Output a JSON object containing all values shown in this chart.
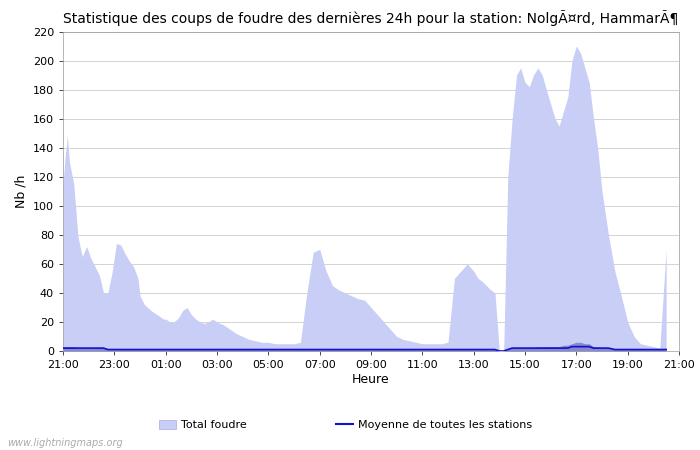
{
  "title": "Statistique des coups de foudre des dernières 24h pour la station: NolgÃ¤rd, HammarÃ¶",
  "xlabel": "Heure",
  "ylabel": "Nb /h",
  "watermark": "www.lightningmaps.org",
  "ylim": [
    0,
    220
  ],
  "yticks": [
    0,
    20,
    40,
    60,
    80,
    100,
    120,
    140,
    160,
    180,
    200,
    220
  ],
  "xtick_labels": [
    "21:00",
    "23:00",
    "01:00",
    "03:00",
    "05:00",
    "07:00",
    "09:00",
    "11:00",
    "13:00",
    "15:00",
    "17:00",
    "19:00",
    "21:00"
  ],
  "total_foudre_hours": [
    0.0,
    0.08,
    0.17,
    0.25,
    0.42,
    0.58,
    0.75,
    0.92,
    1.08,
    1.25,
    1.42,
    1.58,
    1.75,
    1.92,
    2.08,
    2.25,
    2.42,
    2.58,
    2.75,
    2.92,
    3.0,
    3.17,
    3.42,
    3.58,
    3.75,
    3.92,
    4.0,
    4.17,
    4.33,
    4.5,
    4.67,
    4.83,
    5.0,
    5.17,
    5.33,
    5.5,
    5.67,
    5.83,
    6.0,
    6.25,
    6.5,
    6.75,
    7.0,
    7.25,
    7.5,
    7.75,
    8.0,
    8.25,
    8.5,
    8.75,
    9.0,
    9.25,
    9.5,
    9.75,
    10.0,
    10.25,
    10.5,
    10.75,
    11.0,
    11.25,
    11.5,
    11.75,
    12.0,
    12.25,
    12.5,
    12.75,
    13.0,
    13.25,
    13.5,
    13.75,
    14.0,
    14.25,
    14.5,
    14.75,
    15.0,
    15.25,
    15.5,
    15.75,
    16.0,
    16.17,
    16.33,
    16.5,
    16.67,
    16.83,
    17.0,
    17.17,
    17.33,
    17.5,
    17.67,
    17.83,
    18.0,
    18.17,
    18.33,
    18.5,
    18.67,
    18.83,
    19.0,
    19.17,
    19.33,
    19.5,
    19.67,
    19.83,
    20.0,
    20.17,
    20.33,
    20.5,
    20.67,
    20.83,
    21.0,
    21.25,
    21.5,
    21.75,
    22.0,
    22.25,
    22.5,
    22.75,
    23.0,
    23.25,
    23.5,
    23.75,
    24.0
  ],
  "total_foudre_values": [
    115,
    133,
    148,
    130,
    115,
    79,
    65,
    72,
    64,
    58,
    52,
    40,
    40,
    55,
    74,
    73,
    67,
    62,
    58,
    50,
    38,
    32,
    28,
    26,
    24,
    22,
    22,
    20,
    20,
    23,
    28,
    30,
    25,
    22,
    20,
    19,
    20,
    22,
    20,
    18,
    15,
    12,
    10,
    8,
    7,
    6,
    6,
    5,
    5,
    5,
    5,
    6,
    40,
    68,
    70,
    55,
    45,
    42,
    40,
    38,
    36,
    35,
    30,
    25,
    20,
    15,
    10,
    8,
    7,
    6,
    5,
    5,
    5,
    5,
    6,
    50,
    55,
    60,
    55,
    50,
    48,
    45,
    42,
    40,
    0,
    0,
    120,
    160,
    190,
    195,
    185,
    182,
    190,
    195,
    190,
    180,
    170,
    160,
    155,
    165,
    175,
    200,
    210,
    205,
    195,
    185,
    160,
    140,
    110,
    80,
    55,
    38,
    20,
    10,
    5,
    4,
    3,
    2,
    70
  ],
  "station_foudre_values": [
    3,
    3,
    3,
    3,
    3,
    2,
    2,
    2,
    2,
    2,
    2,
    2,
    1,
    1,
    1,
    1,
    1,
    1,
    1,
    1,
    1,
    1,
    1,
    1,
    1,
    1,
    1,
    1,
    1,
    1,
    1,
    1,
    1,
    1,
    1,
    1,
    1,
    1,
    1,
    1,
    1,
    1,
    1,
    1,
    1,
    1,
    1,
    1,
    1,
    1,
    1,
    1,
    1,
    1,
    1,
    1,
    1,
    1,
    1,
    1,
    1,
    1,
    1,
    1,
    1,
    1,
    1,
    1,
    1,
    1,
    1,
    1,
    1,
    1,
    1,
    1,
    1,
    1,
    1,
    1,
    1,
    1,
    1,
    1,
    0,
    0,
    1,
    2,
    2,
    2,
    2,
    2,
    2,
    3,
    3,
    3,
    3,
    3,
    3,
    4,
    4,
    5,
    6,
    6,
    5,
    5,
    3,
    3,
    2,
    2,
    1,
    1,
    1,
    1,
    1,
    1,
    1,
    1,
    1,
    1,
    1,
    1,
    2
  ],
  "moyenne_values": [
    2,
    2,
    2,
    2,
    2,
    2,
    2,
    2,
    2,
    2,
    2,
    2,
    1,
    1,
    1,
    1,
    1,
    1,
    1,
    1,
    1,
    1,
    1,
    1,
    1,
    1,
    1,
    1,
    1,
    1,
    1,
    1,
    1,
    1,
    1,
    1,
    1,
    1,
    1,
    1,
    1,
    1,
    1,
    1,
    1,
    1,
    1,
    1,
    1,
    1,
    1,
    1,
    1,
    1,
    1,
    1,
    1,
    1,
    1,
    1,
    1,
    1,
    1,
    1,
    1,
    1,
    1,
    1,
    1,
    1,
    1,
    1,
    1,
    1,
    1,
    1,
    1,
    1,
    1,
    1,
    1,
    1,
    1,
    1,
    0,
    0,
    1,
    2,
    2,
    2,
    2,
    2,
    2,
    2,
    2,
    2,
    2,
    2,
    2,
    2,
    2,
    3,
    3,
    3,
    3,
    3,
    2,
    2,
    2,
    2,
    1,
    1,
    1,
    1,
    1,
    1,
    1,
    1,
    1,
    1,
    1,
    1,
    2
  ],
  "fill_color_total": "#c8cef5",
  "fill_color_station": "#8888cc",
  "line_color_moyenne": "#1111cc",
  "bg_color": "#ffffff",
  "grid_color": "#cccccc",
  "title_fontsize": 10,
  "axis_fontsize": 9,
  "tick_fontsize": 8
}
